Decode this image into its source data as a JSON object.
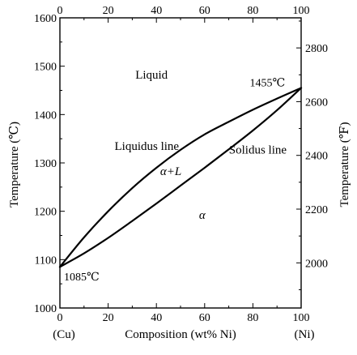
{
  "chart_data": {
    "type": "line",
    "xlabel": "Composition (wt% Ni)",
    "ylabel_left": "Temperature (℃)",
    "ylabel_right": "Temperature (℉)",
    "x_end_labels": {
      "left": "(Cu)",
      "right": "(Ni)"
    },
    "xlim": [
      0,
      100
    ],
    "ylim": [
      1000,
      1600
    ],
    "y2lim_F": [
      1832,
      2912
    ],
    "x_ticks": [
      0,
      20,
      40,
      60,
      80,
      100
    ],
    "x_tick_labels": [
      "0",
      "20",
      "40",
      "60",
      "80",
      "100"
    ],
    "y_ticks": [
      1000,
      1100,
      1200,
      1300,
      1400,
      1500,
      1600
    ],
    "y_tick_labels": [
      "1000",
      "1100",
      "1200",
      "1300",
      "1400",
      "1500",
      "1600"
    ],
    "y2_ticks": [
      2000,
      2200,
      2400,
      2600,
      2800
    ],
    "y2_tick_labels": [
      "2000",
      "2200",
      "2400",
      "2600",
      "2800"
    ],
    "grid": false,
    "series": [
      {
        "name": "Liquidus line",
        "x": [
          0,
          10,
          20,
          30,
          40,
          50,
          60,
          70,
          80,
          90,
          100
        ],
        "y": [
          1085,
          1146,
          1200,
          1248,
          1290,
          1327,
          1359,
          1385,
          1410,
          1433,
          1455
        ]
      },
      {
        "name": "Solidus line",
        "x": [
          0,
          10,
          20,
          30,
          40,
          50,
          60,
          70,
          80,
          90,
          100
        ],
        "y": [
          1085,
          1113,
          1145,
          1180,
          1216,
          1253,
          1290,
          1328,
          1367,
          1409,
          1455
        ]
      }
    ],
    "annotations": [
      {
        "text": "Liquid",
        "x": 38,
        "y": 1483
      },
      {
        "text": "Liquidus line",
        "x": 36,
        "y": 1335
      },
      {
        "text": "Solidus line",
        "x": 82,
        "y": 1328
      },
      {
        "text": "α+L",
        "x": 46,
        "y": 1283
      },
      {
        "text": "α",
        "x": 59,
        "y": 1193
      },
      {
        "text": "1455℃",
        "x": 86,
        "y": 1467
      },
      {
        "text": "1085℃",
        "x": 9,
        "y": 1065
      }
    ]
  }
}
